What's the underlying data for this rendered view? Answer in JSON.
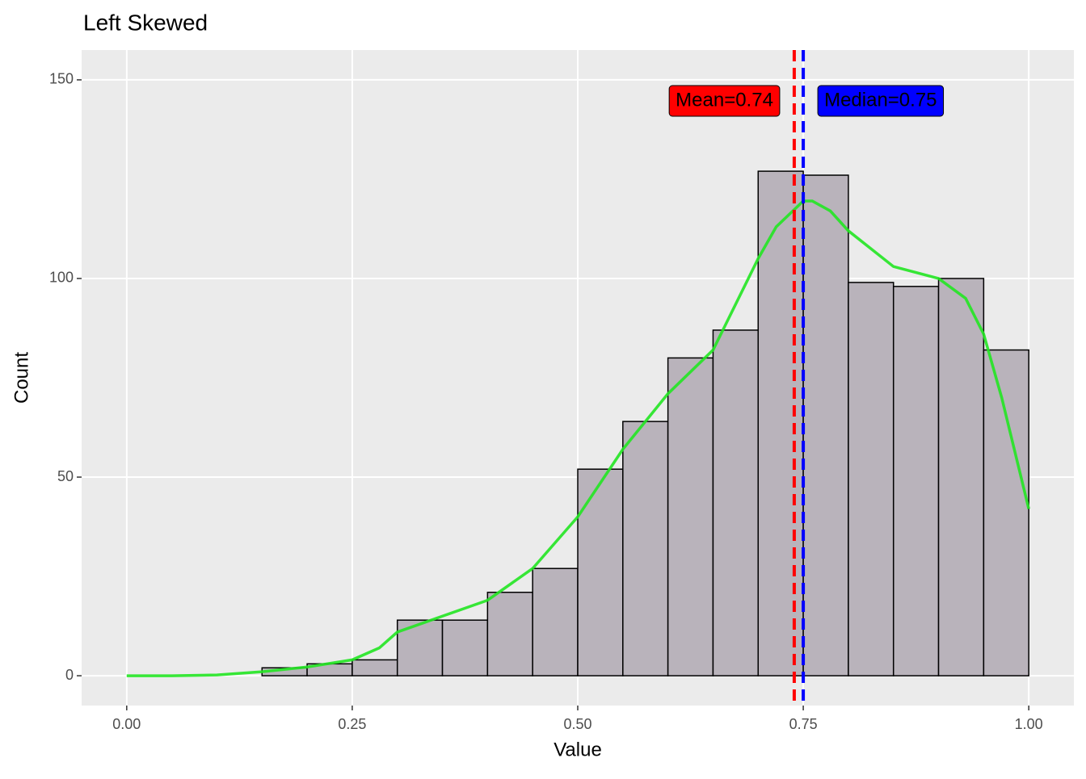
{
  "chart_data": {
    "type": "histogram",
    "title": "Left Skewed",
    "x_label": "Value",
    "y_label": "Count",
    "bins": [
      0,
      0.05,
      0.1,
      0.15,
      0.2,
      0.25,
      0.3,
      0.35,
      0.4,
      0.45,
      0.5,
      0.55,
      0.6,
      0.65,
      0.7,
      0.75,
      0.8,
      0.85,
      0.9,
      0.95,
      1.0
    ],
    "counts": [
      0,
      0,
      0,
      2,
      3,
      4,
      14,
      14,
      21,
      27,
      52,
      64,
      80,
      87,
      127,
      126,
      99,
      98,
      100,
      82
    ],
    "color": "#b9b3bb",
    "edge_color": "#000000",
    "density": {
      "color": "#22e622",
      "x": [
        0,
        0.05,
        0.1,
        0.15,
        0.2,
        0.25,
        0.28,
        0.3,
        0.35,
        0.4,
        0.45,
        0.5,
        0.55,
        0.6,
        0.65,
        0.7,
        0.72,
        0.75,
        0.76,
        0.78,
        0.8,
        0.85,
        0.9,
        0.93,
        0.95,
        0.97,
        1.0
      ],
      "y": [
        0,
        0,
        0.2,
        1,
        2.2,
        4,
        7,
        11,
        15,
        19,
        27,
        40,
        57,
        71,
        82,
        105,
        113,
        119.5,
        119.5,
        117,
        112,
        103,
        100,
        95,
        86,
        70,
        42
      ]
    },
    "mean": {
      "value": 0.74,
      "label": "Mean=0.74",
      "color": "#ff0000"
    },
    "median": {
      "value": 0.75,
      "label": "Median=0.75",
      "color": "#0000ff"
    },
    "xlim": [
      -0.05,
      1.05
    ],
    "ylim": [
      -7.5,
      157.5
    ],
    "xticks": [
      {
        "value": 0,
        "label": "0.00"
      },
      {
        "value": 0.25,
        "label": "0.25"
      },
      {
        "value": 0.5,
        "label": "0.50"
      },
      {
        "value": 0.75,
        "label": "0.75"
      },
      {
        "value": 1,
        "label": "1.00"
      }
    ],
    "yticks": [
      0,
      50,
      100,
      150
    ],
    "grid": true
  }
}
